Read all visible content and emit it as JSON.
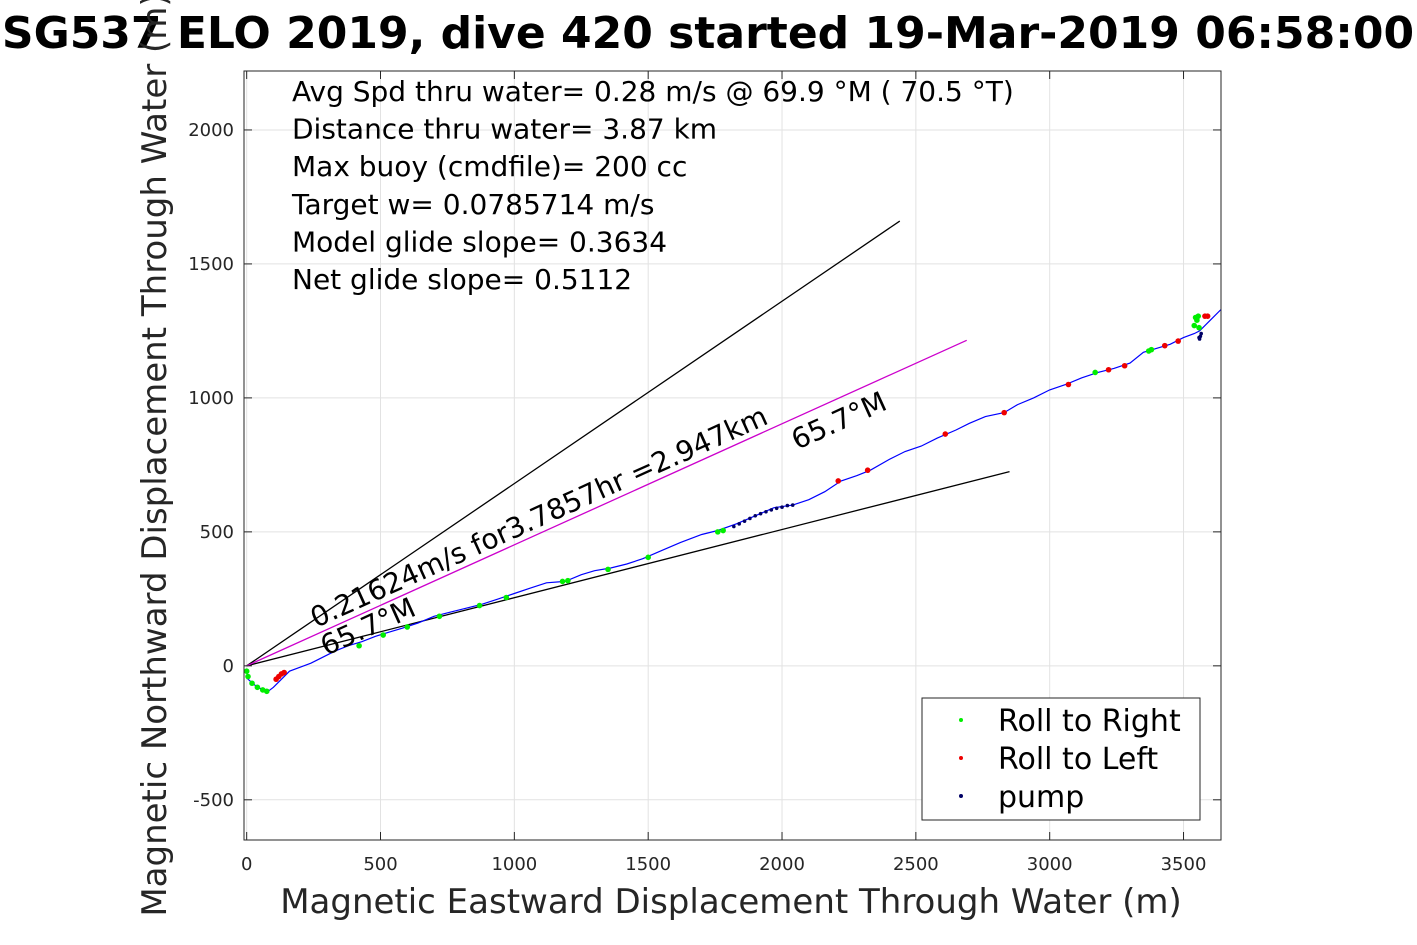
{
  "chart_data": {
    "type": "line",
    "title": "SG537 ELO 2019, dive 420 started 19-Mar-2019 06:58:00",
    "xlabel": "Magnetic Eastward Displacement Through Water (m)",
    "ylabel": "Magnetic Northward Displacement Through Water (m)",
    "xlim": [
      -10,
      3640
    ],
    "ylim": [
      -650,
      2220
    ],
    "x_ticks": [
      0,
      500,
      1000,
      1500,
      2000,
      2500,
      3000,
      3500
    ],
    "y_ticks": [
      -500,
      0,
      500,
      1000,
      1500,
      2000
    ],
    "grid": true,
    "legend_position": "bottom-right",
    "stats_lines": [
      "Avg Spd thru water=  0.28 m/s @  69.9 °M ( 70.5 °T)",
      "Distance thru water=  3.87 km",
      "Max buoy (cmdfile)= 200 cc",
      "Target w= 0.0785714 m/s",
      "Model glide slope= 0.3634",
      "Net glide slope= 0.5112"
    ],
    "annotations": {
      "current_vector": "0.21624m/s for3.7857hr =2.947km",
      "heading_lower": "65.7°M",
      "heading_upper": "65.7°M"
    },
    "reference_lines": [
      {
        "color": "#000000",
        "points": [
          [
            0,
            0
          ],
          [
            2440,
            1660
          ]
        ]
      },
      {
        "color": "#000000",
        "points": [
          [
            0,
            0
          ],
          [
            2850,
            725
          ]
        ]
      },
      {
        "color": "#cc00cc",
        "points": [
          [
            0,
            0
          ],
          [
            2690,
            1215
          ]
        ]
      }
    ],
    "track_color": "#0000ff",
    "track": [
      [
        0,
        -20
      ],
      [
        5,
        -50
      ],
      [
        40,
        -80
      ],
      [
        80,
        -95
      ],
      [
        100,
        -80
      ],
      [
        130,
        -50
      ],
      [
        160,
        -20
      ],
      [
        200,
        -5
      ],
      [
        240,
        10
      ],
      [
        280,
        30
      ],
      [
        330,
        55
      ],
      [
        380,
        75
      ],
      [
        430,
        90
      ],
      [
        480,
        110
      ],
      [
        530,
        125
      ],
      [
        580,
        140
      ],
      [
        640,
        160
      ],
      [
        700,
        185
      ],
      [
        760,
        200
      ],
      [
        820,
        215
      ],
      [
        880,
        230
      ],
      [
        940,
        250
      ],
      [
        1000,
        270
      ],
      [
        1060,
        290
      ],
      [
        1120,
        310
      ],
      [
        1190,
        315
      ],
      [
        1250,
        340
      ],
      [
        1300,
        355
      ],
      [
        1360,
        365
      ],
      [
        1420,
        380
      ],
      [
        1480,
        400
      ],
      [
        1550,
        430
      ],
      [
        1620,
        460
      ],
      [
        1700,
        490
      ],
      [
        1760,
        505
      ],
      [
        1830,
        530
      ],
      [
        1900,
        560
      ],
      [
        1970,
        590
      ],
      [
        2040,
        600
      ],
      [
        2100,
        620
      ],
      [
        2160,
        650
      ],
      [
        2220,
        690
      ],
      [
        2280,
        710
      ],
      [
        2330,
        730
      ],
      [
        2400,
        770
      ],
      [
        2460,
        800
      ],
      [
        2520,
        820
      ],
      [
        2580,
        850
      ],
      [
        2650,
        880
      ],
      [
        2700,
        905
      ],
      [
        2760,
        930
      ],
      [
        2830,
        945
      ],
      [
        2880,
        975
      ],
      [
        2940,
        1000
      ],
      [
        3000,
        1030
      ],
      [
        3060,
        1050
      ],
      [
        3120,
        1075
      ],
      [
        3180,
        1095
      ],
      [
        3240,
        1110
      ],
      [
        3300,
        1130
      ],
      [
        3350,
        1170
      ],
      [
        3400,
        1185
      ],
      [
        3450,
        1200
      ],
      [
        3500,
        1225
      ],
      [
        3540,
        1240
      ],
      [
        3560,
        1250
      ],
      [
        3600,
        1290
      ],
      [
        3640,
        1330
      ]
    ],
    "series": [
      {
        "name": "Roll to Right",
        "color": "#00ee00",
        "points": [
          [
            0,
            -20
          ],
          [
            5,
            -40
          ],
          [
            20,
            -65
          ],
          [
            40,
            -80
          ],
          [
            60,
            -90
          ],
          [
            75,
            -95
          ],
          [
            420,
            75
          ],
          [
            510,
            115
          ],
          [
            600,
            145
          ],
          [
            720,
            185
          ],
          [
            870,
            225
          ],
          [
            970,
            255
          ],
          [
            1180,
            315
          ],
          [
            1200,
            318
          ],
          [
            1350,
            360
          ],
          [
            1500,
            405
          ],
          [
            1760,
            500
          ],
          [
            1780,
            505
          ],
          [
            3170,
            1095
          ],
          [
            3370,
            1175
          ],
          [
            3380,
            1180
          ],
          [
            3540,
            1270
          ],
          [
            3550,
            1290
          ],
          [
            3555,
            1305
          ],
          [
            3545,
            1300
          ],
          [
            3558,
            1262
          ]
        ]
      },
      {
        "name": "Roll to Left",
        "color": "#ee0000",
        "points": [
          [
            110,
            -50
          ],
          [
            120,
            -40
          ],
          [
            130,
            -30
          ],
          [
            140,
            -25
          ],
          [
            2210,
            690
          ],
          [
            2320,
            730
          ],
          [
            2610,
            865
          ],
          [
            2830,
            945
          ],
          [
            3070,
            1050
          ],
          [
            3220,
            1105
          ],
          [
            3280,
            1120
          ],
          [
            3430,
            1195
          ],
          [
            3480,
            1212
          ],
          [
            3580,
            1305
          ],
          [
            3590,
            1305
          ]
        ]
      },
      {
        "name": "pump",
        "color": "#000066",
        "points": [
          [
            1820,
            520
          ],
          [
            1840,
            530
          ],
          [
            1860,
            540
          ],
          [
            1880,
            550
          ],
          [
            1900,
            560
          ],
          [
            1920,
            568
          ],
          [
            1940,
            575
          ],
          [
            1960,
            582
          ],
          [
            1980,
            588
          ],
          [
            2000,
            592
          ],
          [
            2020,
            598
          ],
          [
            2040,
            600
          ],
          [
            3560,
            1220
          ],
          [
            3563,
            1230
          ],
          [
            3566,
            1240
          ],
          [
            3558,
            1225
          ]
        ]
      }
    ]
  }
}
